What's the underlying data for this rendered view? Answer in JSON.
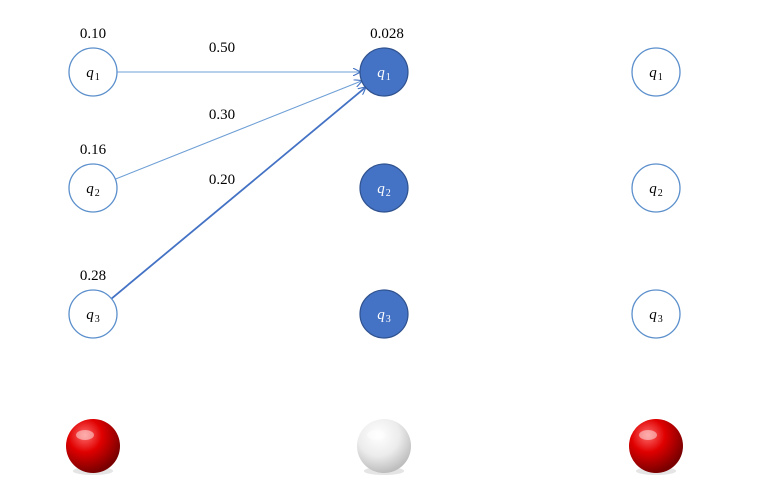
{
  "columns": [
    {
      "states": [
        {
          "name": "q",
          "sub": "1",
          "value": "0.10",
          "style": "outline"
        },
        {
          "name": "q",
          "sub": "2",
          "value": "0.16",
          "style": "outline"
        },
        {
          "name": "q",
          "sub": "3",
          "value": "0.28",
          "style": "outline"
        }
      ],
      "ball": "red"
    },
    {
      "states": [
        {
          "name": "q",
          "sub": "1",
          "value": "0.028",
          "style": "filled"
        },
        {
          "name": "q",
          "sub": "2",
          "value": "",
          "style": "filled"
        },
        {
          "name": "q",
          "sub": "3",
          "value": "",
          "style": "filled"
        }
      ],
      "ball": "white"
    },
    {
      "states": [
        {
          "name": "q",
          "sub": "1",
          "value": "",
          "style": "outline"
        },
        {
          "name": "q",
          "sub": "2",
          "value": "",
          "style": "outline"
        },
        {
          "name": "q",
          "sub": "3",
          "value": "",
          "style": "outline"
        }
      ],
      "ball": "red"
    }
  ],
  "transitions": [
    {
      "from": 0,
      "to": 0,
      "label": "0.50"
    },
    {
      "from": 1,
      "to": 0,
      "label": "0.30"
    },
    {
      "from": 2,
      "to": 0,
      "label": "0.20"
    }
  ],
  "colors": {
    "outline_stroke": "#5b8fcc",
    "filled_fill": "#4472c4",
    "filled_stroke": "#2f528f",
    "arrow_thin": "#6e9fd6",
    "arrow_thick": "#4472c4",
    "ball_red": "#e00000",
    "ball_white": "#e8e8e8"
  }
}
